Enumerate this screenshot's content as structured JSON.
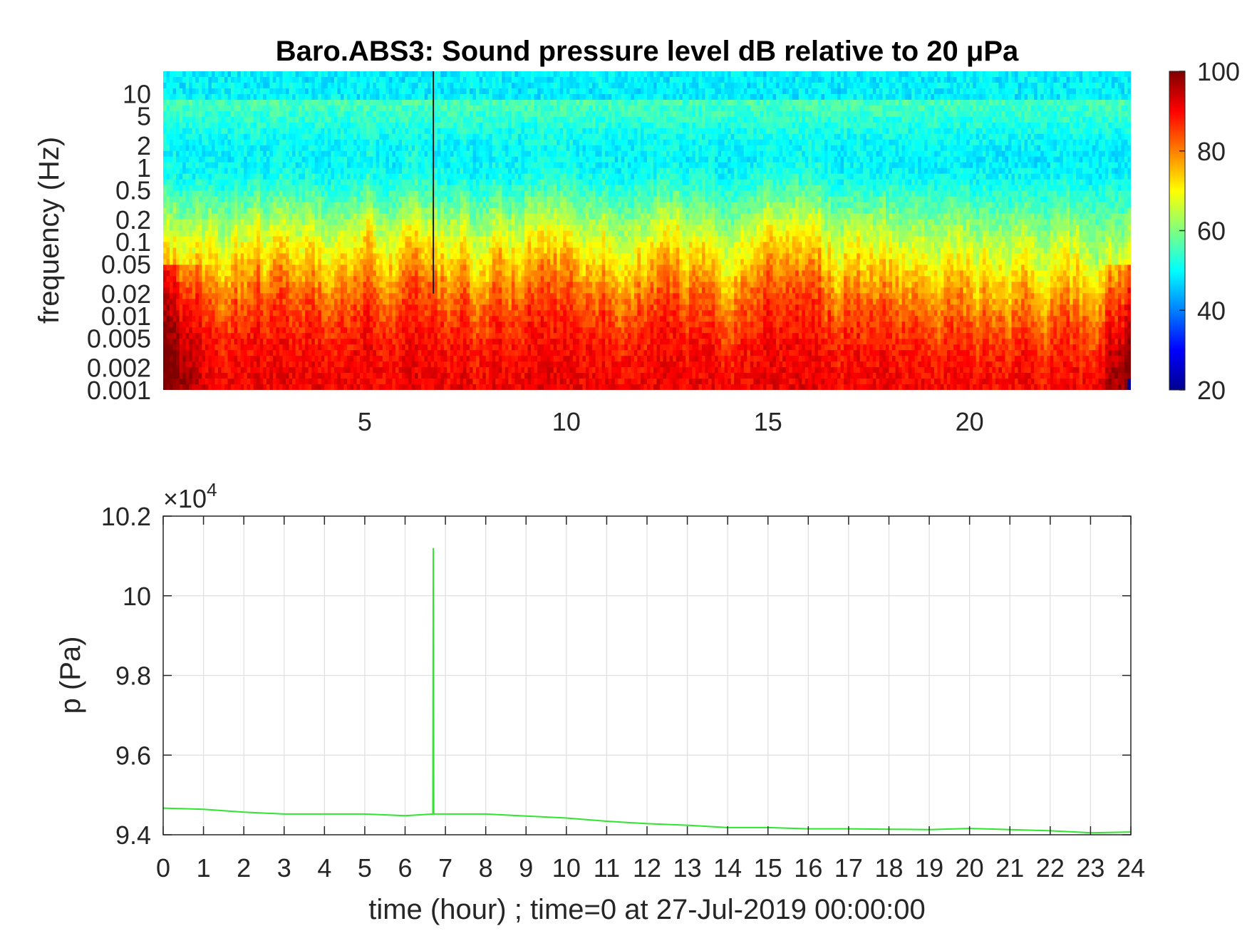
{
  "colors": {
    "line": "#2ee62e",
    "axis": "#262626",
    "grid": "#dfdfdf"
  },
  "colormap": "jet",
  "chart_data": [
    {
      "type": "heatmap",
      "title": "Baro.ABS3: Sound pressure level dB relative to 20 μPa",
      "xlabel": "",
      "ylabel": "frequency (Hz)",
      "xlim": [
        0,
        24
      ],
      "ylim": [
        0.001,
        20
      ],
      "yscale": "log",
      "xticks": [
        5,
        10,
        15,
        20
      ],
      "xtick_labels": [
        "5",
        "10",
        "15",
        "20"
      ],
      "yticks": [
        0.001,
        0.002,
        0.005,
        0.01,
        0.02,
        0.05,
        0.1,
        0.2,
        0.5,
        1,
        2,
        5,
        10
      ],
      "ytick_labels": [
        "0.001",
        "0.002",
        "0.005",
        "0.01",
        "0.02",
        "0.05",
        "0.1",
        "0.2",
        "0.5",
        "1",
        "2",
        "5",
        "10"
      ],
      "colorbar": {
        "clim": [
          20,
          100
        ],
        "ticks": [
          20,
          40,
          60,
          80,
          100
        ],
        "tick_labels": [
          "20",
          "40",
          "60",
          "80",
          "100"
        ]
      },
      "spike_hour": 6.7
    },
    {
      "type": "line",
      "xlabel": "time (hour) ; time=0 at 27-Jul-2019 00:00:00",
      "ylabel": "p (Pa)",
      "y_exponent_label": "×10",
      "y_exponent_power": "4",
      "xlim": [
        0,
        24
      ],
      "ylim": [
        9.4,
        10.2
      ],
      "grid": true,
      "xticks": [
        0,
        1,
        2,
        3,
        4,
        5,
        6,
        7,
        8,
        9,
        10,
        11,
        12,
        13,
        14,
        15,
        16,
        17,
        18,
        19,
        20,
        21,
        22,
        23,
        24
      ],
      "xtick_labels": [
        "0",
        "1",
        "2",
        "3",
        "4",
        "5",
        "6",
        "7",
        "8",
        "9",
        "10",
        "11",
        "12",
        "13",
        "14",
        "15",
        "16",
        "17",
        "18",
        "19",
        "20",
        "21",
        "22",
        "23",
        "24"
      ],
      "yticks": [
        9.4,
        9.6,
        9.8,
        10,
        10.2
      ],
      "ytick_labels": [
        "9.4",
        "9.6",
        "9.8",
        "10",
        "10.2"
      ],
      "series": [
        {
          "x": [
            0,
            1,
            2,
            3,
            4,
            5,
            6,
            6.69,
            6.7,
            6.71,
            7,
            8,
            9,
            10,
            11,
            12,
            13,
            14,
            15,
            16,
            17,
            18,
            19,
            20,
            21,
            22,
            23,
            24
          ],
          "y": [
            9.467,
            9.464,
            9.457,
            9.452,
            9.452,
            9.452,
            9.448,
            9.452,
            10.12,
            9.452,
            9.452,
            9.452,
            9.447,
            9.442,
            9.434,
            9.428,
            9.424,
            9.418,
            9.418,
            9.415,
            9.415,
            9.414,
            9.413,
            9.416,
            9.413,
            9.41,
            9.405,
            9.407
          ]
        }
      ]
    }
  ]
}
